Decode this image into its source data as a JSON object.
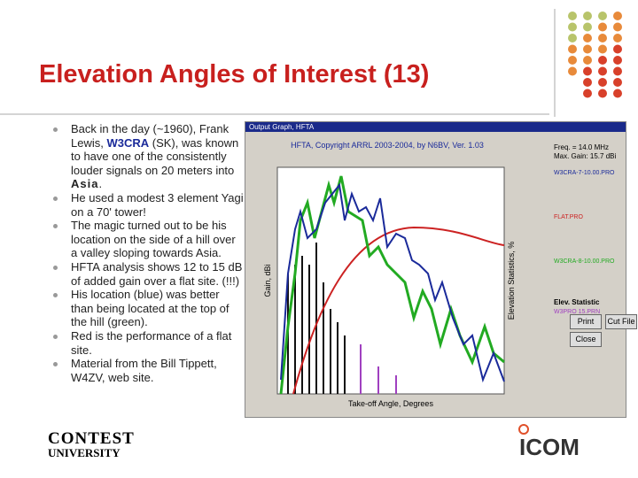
{
  "slide": {
    "title": "Elevation Angles of Interest (13)",
    "bullets": [
      [
        "Back in the day (~1960), Frank Lewis, ",
        "W3CRA",
        " (SK), was known to have one of the consistently louder signals on 20 meters into ",
        "Asia",
        "."
      ],
      "He used a modest 3 element Yagi on a 70' tower!",
      "The magic turned out to be his location on the side of a hill over a valley sloping towards Asia.",
      "HFTA analysis shows 12 to 15 dB of added gain over a flat site. (!!!)",
      "His location (blue) was better than being located at the top of the hill (green).",
      "Red is the performance of a flat site.",
      "Material from the Bill Tippett, W4ZV, web site."
    ]
  },
  "window": {
    "title_bar": "Output Graph, HFTA",
    "chart_title": "HFTA, Copyright ARRL 2003-2004, by N6BV, Ver. 1.03",
    "y_label": "Gain, dBi",
    "y2_label": "Elevation Statistics, %",
    "x_label": "Take-off Angle, Degrees",
    "freq": "Freq. = 14.0 MHz",
    "max_gain": "Max. Gain: 15.7 dBi",
    "files": [
      {
        "name": "W3CRA-7-10.00.PRO",
        "color": "#1a2a9a"
      },
      {
        "name": "FLAT.PRO",
        "color": "#cc2222"
      },
      {
        "name": "W3CRA-8-10.00.PRO",
        "color": "#22aa22"
      }
    ],
    "stat_heading": "Elev. Statistic",
    "stat_file": "W3PRO 15.PRN",
    "buttons": [
      "Print",
      "Cut File",
      "Close"
    ]
  },
  "footer": {
    "left_logo_top": "CONTEST",
    "left_logo_bottom": "UNIVERSITY",
    "right_logo": "ICOM"
  }
}
